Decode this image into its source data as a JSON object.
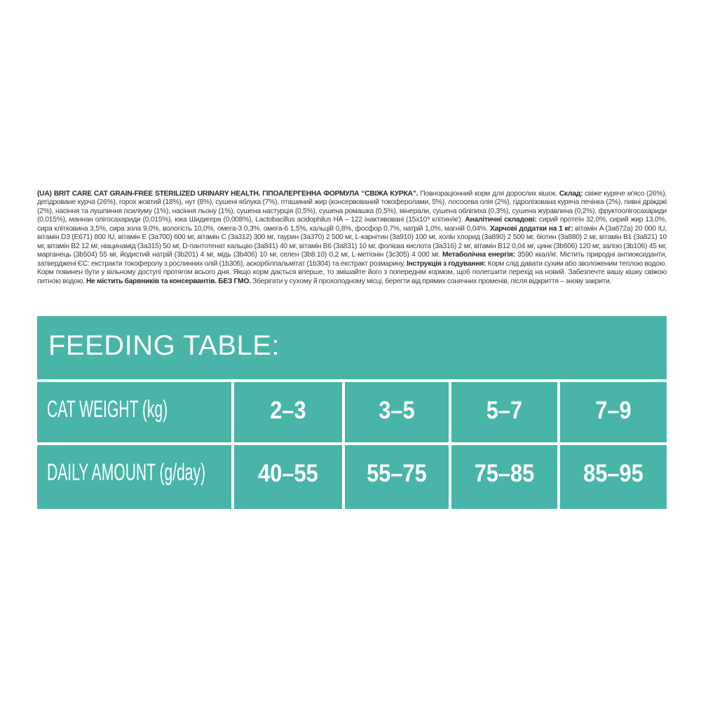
{
  "composition": [
    {
      "text": "(UA) BRIT CARE CAT GRAIN-FREE STERILIZED URINARY HEALTH. ГІПОАЛЕРГЕННА ФОРМУЛА “СВІЖА КУРКА”.",
      "bold": true
    },
    {
      "text": " Повнораціонний корм для дорослих кішок. ",
      "bold": false
    },
    {
      "text": "Склад:",
      "bold": true
    },
    {
      "text": " свіже куряче м'ясо (26%), дегідроване курча (26%), горох жовтий (18%), нут (8%), сушені яблука (7%), пташиний жир (консервований токоферолами, 5%), лососева олія (2%), гідролізована куряча печінка (2%), пивні дріжджі (2%), насіння та лушпиння псиліуму (1%), насіння льону (1%), сушена настурція (0,5%), сушена ромашка (0,5%), мінерали, сушена обліпиха (0,3%), сушена журавлина (0,2%), фруктоолігосахариди (0,015%), маннан олігосахариди (0,015%), юка Шидигера (0,008%), Lactobacillus acidophilus HA – 122 інактивовані (15x10⁹ клітин/кг). ",
      "bold": false
    },
    {
      "text": "Аналітичні складові:",
      "bold": true
    },
    {
      "text": " сирий протеїн 32,0%, сирий жир 13,0%, сира клітковина 3,5%, сира зола 9,0%, вологість 10,0%, омега-3 0,3%, омега-6 1,5%, кальцій 0,8%, фосфор 0,7%, натрій 1,0%, магній 0,04%. ",
      "bold": false
    },
    {
      "text": "Харчові додатки на 1 кг:",
      "bold": true
    },
    {
      "text": " вітамін A (3a672a) 20 000 IU, вітамін D3 (E671) 800 IU, вітамін E (3a700) 600 мг, вітамін C (3a312) 300 мг, таурин (3a370) 2 500 мг, L-карнітин (3a910) 100 мг, холін хлорид (3a890) 2 500 мг, біотин (3a880) 2 мг, вітамін B1 (3a821) 10 мг, вітамін B2 12 мг, ніацинамід (3a315) 50 мг, D-пантотенат кальцію (3a841) 40 мг, вітамін B6 (3a831) 10 мг, фолієва кислота (3a316) 2 мг, вітамін B12 0,04 мг, цинк (3b606) 120 мг, залізо (3b106) 45 мг, марганець (3b504) 55 мг, йодистий натрій (3b201) 4 мг, мідь (3b406) 10 мг, селен (3b8.10) 0,2 мг, L-метіонін (3c305) 4 000 мг. ",
      "bold": false
    },
    {
      "text": "Метаболічна енергія:",
      "bold": true
    },
    {
      "text": " 3590 ккал/кг. Містить природні антиоксиданти, затверджені ЄС: екстракти токоферолу з рослинних олій (1b306), аскорбілпальмітат (1b304) та екстракт розмарину. ",
      "bold": false
    },
    {
      "text": "Інструкція з годування:",
      "bold": true
    },
    {
      "text": " Корм слід давати сухим або зволоженим теплою водою. Корм повинен бути у вільному доступі протягом всього дня. Якщо корм дається вперше, то змішайте його з попереднім кормом, щоб полегшити перехід на новий. Забезпечте вашу кішку свіжою питною водою. ",
      "bold": false
    },
    {
      "text": "Не містить барвників та консервантів. БЕЗ ГМО.",
      "bold": true
    },
    {
      "text": " Зберігати у сухому й прохолодному місці, берегти від прямих сонячних променів, після відкриття – знову закрити.",
      "bold": false
    }
  ],
  "feeding_table": {
    "title": "FEEDING TABLE:",
    "accent_color": "#48b5a8",
    "rows": [
      {
        "label": "CAT WEIGHT (kg)",
        "values": [
          "2–3",
          "3–5",
          "5–7",
          "7–9"
        ]
      },
      {
        "label": "DAILY AMOUNT (g/day)",
        "values": [
          "40–55",
          "55–75",
          "75–85",
          "85–95"
        ]
      }
    ]
  }
}
